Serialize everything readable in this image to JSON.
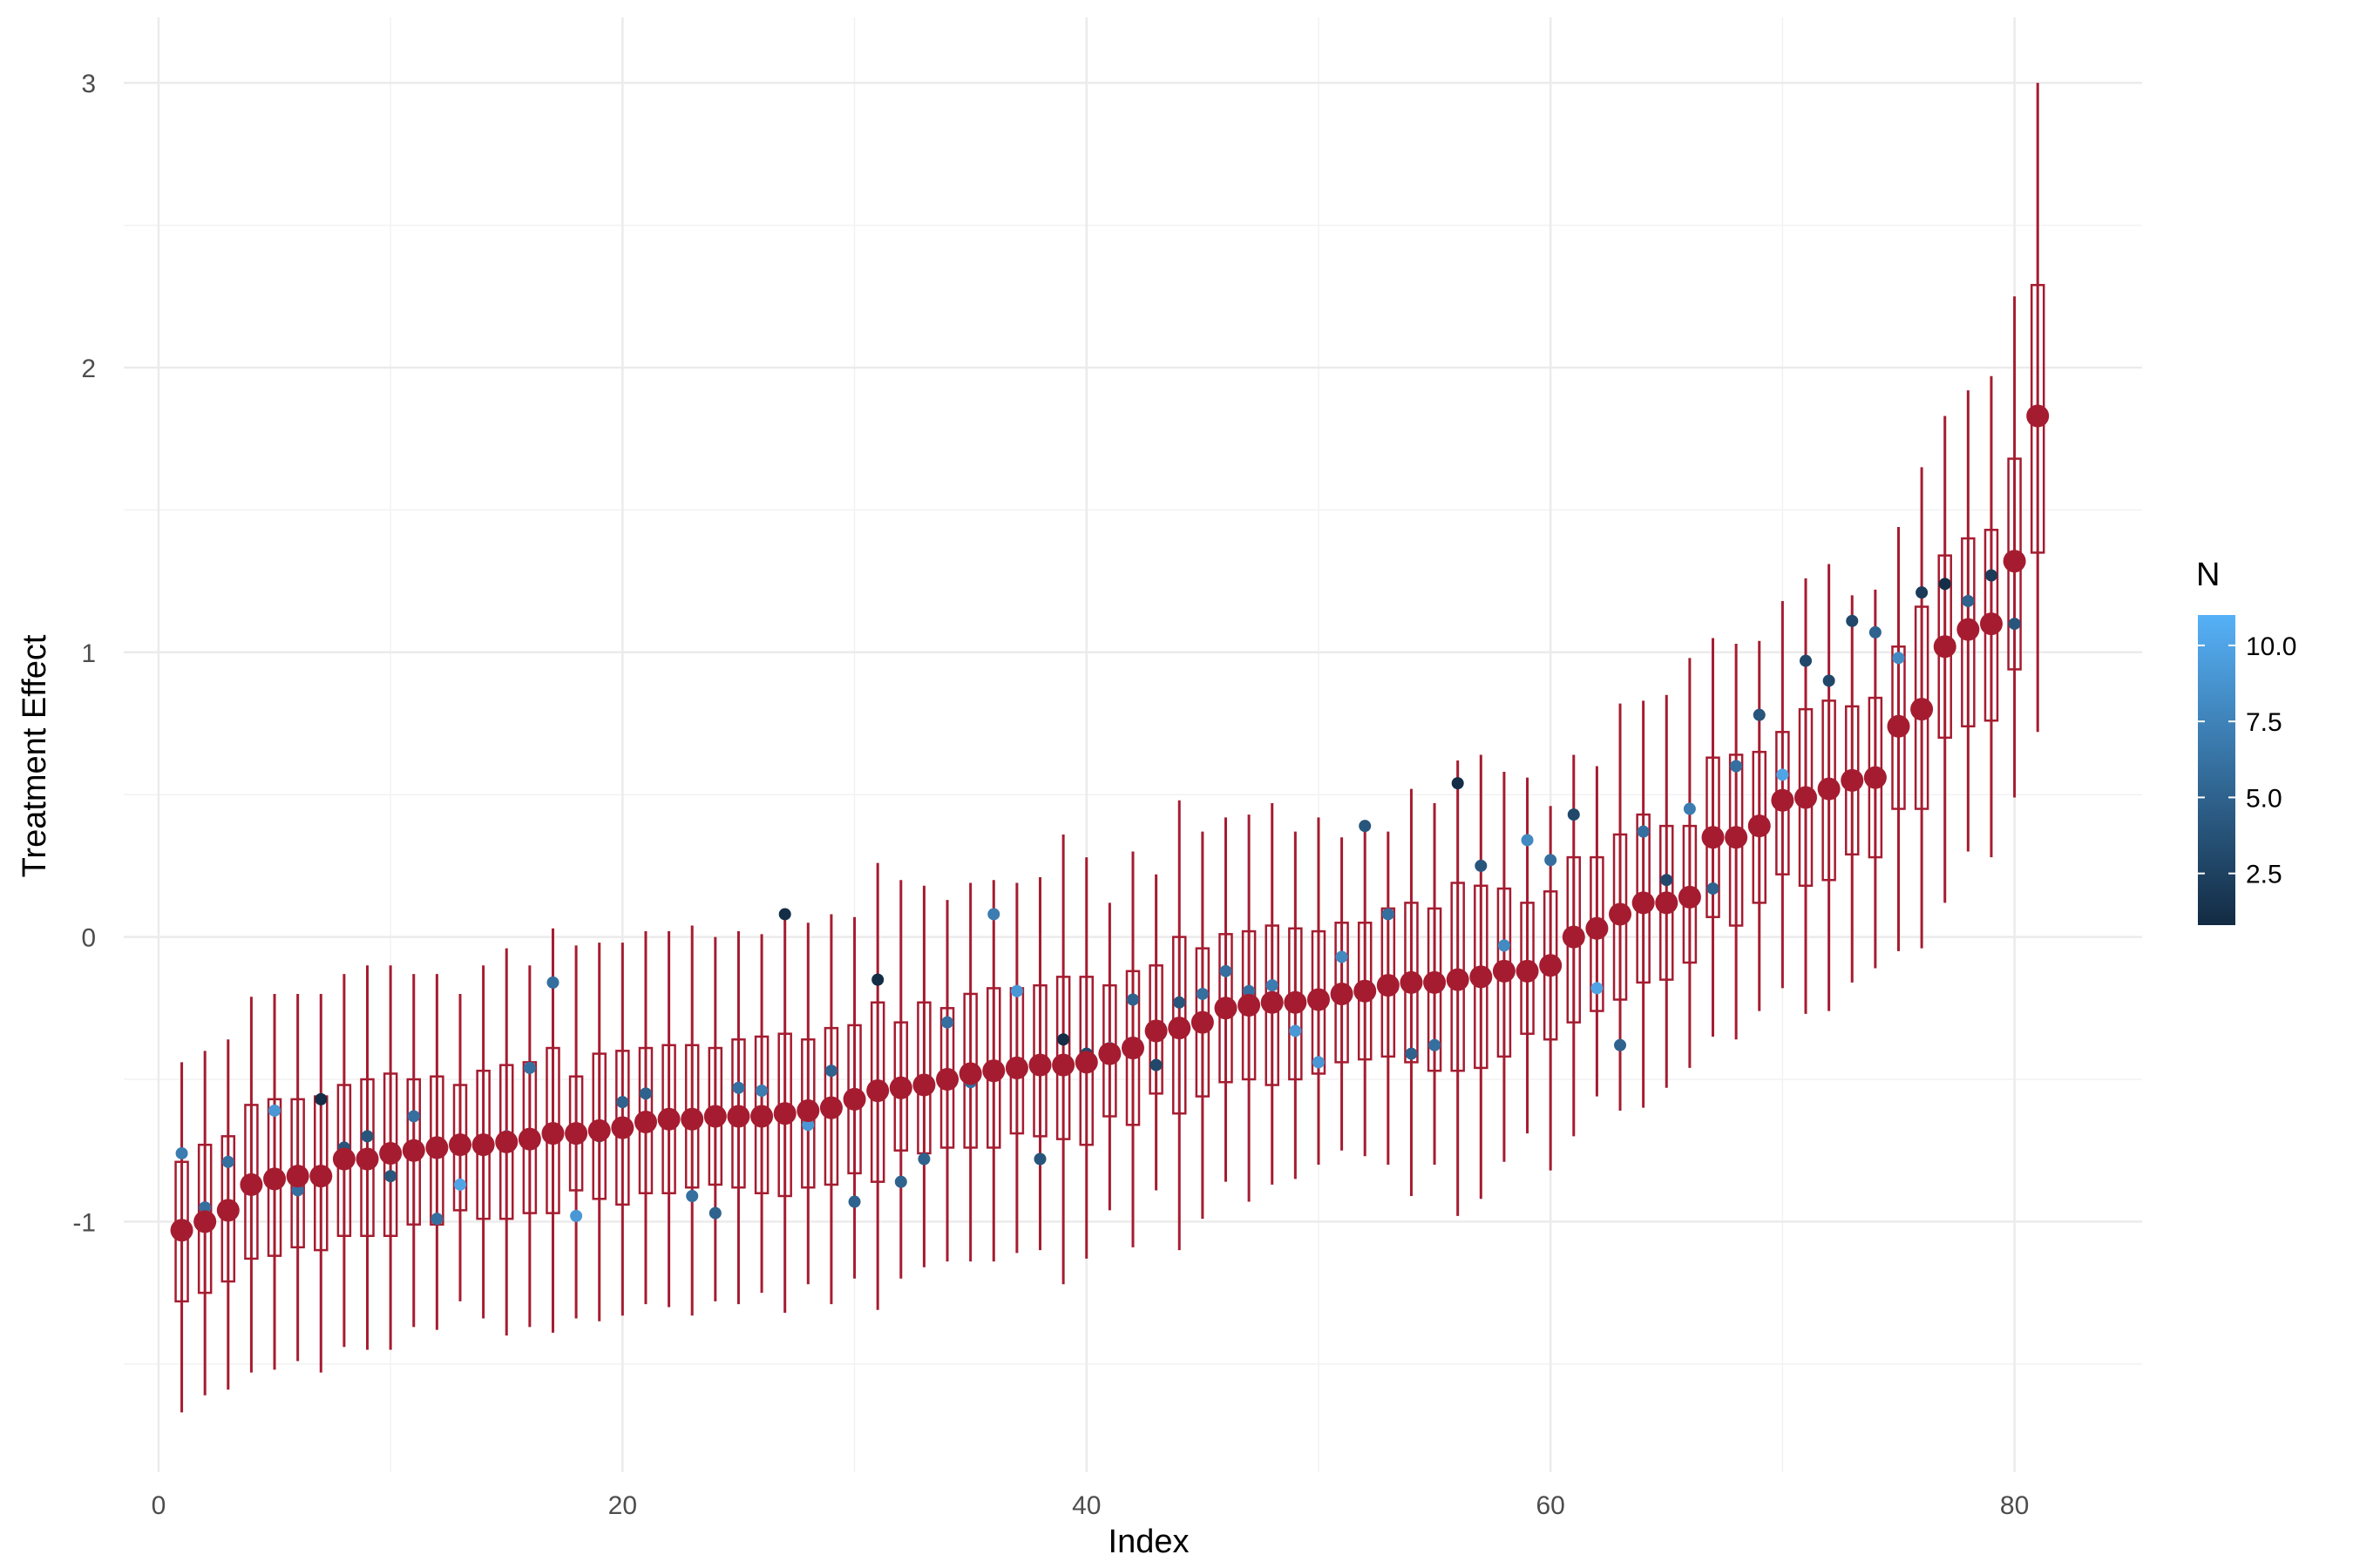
{
  "chart_data": {
    "type": "scatter",
    "xlabel": "Index",
    "ylabel": "Treatment Effect",
    "xlim": [
      -1.5,
      85.5
    ],
    "ylim": [
      -1.88,
      3.23
    ],
    "x_ticks": [
      0,
      20,
      40,
      60,
      80
    ],
    "x_tick_labels": [
      "0",
      "20",
      "40",
      "60",
      "80"
    ],
    "y_ticks": [
      -1,
      0,
      1,
      2,
      3
    ],
    "y_tick_labels": [
      "-1",
      "0",
      "1",
      "2",
      "3"
    ],
    "grid": true,
    "legend": {
      "title": "N",
      "position": "right",
      "range": [
        0.8,
        11
      ],
      "ticks": [
        2.5,
        5.0,
        7.5,
        10.0
      ],
      "tick_labels": [
        "2.5",
        "5.0",
        "7.5",
        "10.0"
      ],
      "low_color": "#132B43",
      "high_color": "#56B1F7"
    },
    "estimate_color": "#A51C30",
    "index": [
      1,
      2,
      3,
      4,
      5,
      6,
      7,
      8,
      9,
      10,
      11,
      12,
      13,
      14,
      15,
      16,
      17,
      18,
      19,
      20,
      21,
      22,
      23,
      24,
      25,
      26,
      27,
      28,
      29,
      30,
      31,
      32,
      33,
      34,
      35,
      36,
      37,
      38,
      39,
      40,
      41,
      42,
      43,
      44,
      45,
      46,
      47,
      48,
      49,
      50,
      51,
      52,
      53,
      54,
      55,
      56,
      57,
      58,
      59,
      60,
      61,
      62,
      63,
      64,
      65,
      66,
      67,
      68,
      69,
      70,
      71,
      72,
      73,
      74,
      75,
      76,
      77,
      78,
      79,
      80,
      81
    ],
    "estimate": [
      -1.03,
      -1.0,
      -0.96,
      -0.87,
      -0.85,
      -0.84,
      -0.84,
      -0.78,
      -0.78,
      -0.76,
      -0.75,
      -0.74,
      -0.73,
      -0.73,
      -0.72,
      -0.71,
      -0.69,
      -0.69,
      -0.68,
      -0.67,
      -0.65,
      -0.64,
      -0.64,
      -0.63,
      -0.63,
      -0.63,
      -0.62,
      -0.61,
      -0.6,
      -0.57,
      -0.54,
      -0.53,
      -0.52,
      -0.5,
      -0.48,
      -0.47,
      -0.46,
      -0.45,
      -0.45,
      -0.44,
      -0.41,
      -0.39,
      -0.33,
      -0.32,
      -0.3,
      -0.25,
      -0.24,
      -0.23,
      -0.23,
      -0.22,
      -0.2,
      -0.19,
      -0.17,
      -0.16,
      -0.16,
      -0.15,
      -0.14,
      -0.12,
      -0.12,
      -0.1,
      0.0,
      0.03,
      0.08,
      0.12,
      0.12,
      0.14,
      0.35,
      0.35,
      0.39,
      0.48,
      0.49,
      0.52,
      0.55,
      0.56,
      0.74,
      0.8,
      1.02,
      1.08,
      1.1,
      1.32,
      1.83
    ],
    "ci95_low": [
      -1.67,
      -1.61,
      -1.59,
      -1.53,
      -1.52,
      -1.49,
      -1.53,
      -1.44,
      -1.45,
      -1.45,
      -1.37,
      -1.38,
      -1.28,
      -1.34,
      -1.4,
      -1.37,
      -1.39,
      -1.34,
      -1.35,
      -1.33,
      -1.29,
      -1.3,
      -1.33,
      -1.28,
      -1.29,
      -1.25,
      -1.32,
      -1.22,
      -1.29,
      -1.2,
      -1.31,
      -1.2,
      -1.16,
      -1.14,
      -1.14,
      -1.14,
      -1.11,
      -1.1,
      -1.22,
      -1.13,
      -0.96,
      -1.09,
      -0.89,
      -1.1,
      -0.99,
      -0.86,
      -0.93,
      -0.87,
      -0.85,
      -0.8,
      -0.75,
      -0.77,
      -0.8,
      -0.91,
      -0.8,
      -0.98,
      -0.92,
      -0.79,
      -0.69,
      -0.82,
      -0.7,
      -0.56,
      -0.61,
      -0.6,
      -0.53,
      -0.46,
      -0.35,
      -0.36,
      -0.26,
      -0.18,
      -0.27,
      -0.26,
      -0.16,
      -0.11,
      -0.05,
      -0.04,
      0.12,
      0.3,
      0.28,
      0.49,
      0.72
    ],
    "ci95_high": [
      -0.44,
      -0.4,
      -0.36,
      -0.21,
      -0.2,
      -0.2,
      -0.2,
      -0.13,
      -0.1,
      -0.1,
      -0.13,
      -0.13,
      -0.2,
      -0.1,
      -0.04,
      -0.1,
      0.03,
      -0.03,
      -0.02,
      -0.02,
      0.02,
      0.02,
      0.04,
      0.0,
      0.02,
      0.01,
      0.06,
      0.05,
      0.08,
      0.07,
      0.26,
      0.2,
      0.18,
      0.13,
      0.19,
      0.2,
      0.19,
      0.21,
      0.36,
      0.28,
      0.12,
      0.3,
      0.22,
      0.48,
      0.37,
      0.42,
      0.43,
      0.47,
      0.37,
      0.42,
      0.35,
      0.4,
      0.37,
      0.52,
      0.47,
      0.62,
      0.64,
      0.58,
      0.56,
      0.46,
      0.64,
      0.6,
      0.82,
      0.83,
      0.85,
      0.98,
      1.05,
      1.03,
      1.04,
      1.18,
      1.26,
      1.31,
      1.2,
      1.22,
      1.44,
      1.65,
      1.83,
      1.92,
      1.97,
      2.25,
      3.0
    ],
    "ci50_low": [
      -1.28,
      -1.25,
      -1.21,
      -1.13,
      -1.12,
      -1.09,
      -1.1,
      -1.05,
      -1.05,
      -1.05,
      -1.01,
      -1.01,
      -0.96,
      -0.99,
      -0.99,
      -0.97,
      -0.97,
      -0.89,
      -0.92,
      -0.94,
      -0.9,
      -0.9,
      -0.88,
      -0.87,
      -0.88,
      -0.9,
      -0.91,
      -0.88,
      -0.87,
      -0.83,
      -0.86,
      -0.75,
      -0.76,
      -0.74,
      -0.74,
      -0.74,
      -0.69,
      -0.7,
      -0.71,
      -0.73,
      -0.63,
      -0.66,
      -0.55,
      -0.62,
      -0.56,
      -0.51,
      -0.5,
      -0.52,
      -0.5,
      -0.48,
      -0.44,
      -0.43,
      -0.42,
      -0.44,
      -0.47,
      -0.47,
      -0.46,
      -0.42,
      -0.34,
      -0.36,
      -0.3,
      -0.26,
      -0.22,
      -0.16,
      -0.15,
      -0.09,
      0.07,
      0.04,
      0.12,
      0.22,
      0.18,
      0.2,
      0.29,
      0.28,
      0.45,
      0.45,
      0.7,
      0.74,
      0.76,
      0.94,
      1.35
    ],
    "ci50_high": [
      -0.79,
      -0.73,
      -0.7,
      -0.59,
      -0.57,
      -0.57,
      -0.56,
      -0.52,
      -0.5,
      -0.48,
      -0.5,
      -0.49,
      -0.52,
      -0.47,
      -0.45,
      -0.44,
      -0.39,
      -0.49,
      -0.41,
      -0.4,
      -0.39,
      -0.38,
      -0.38,
      -0.39,
      -0.36,
      -0.35,
      -0.34,
      -0.36,
      -0.32,
      -0.31,
      -0.23,
      -0.3,
      -0.23,
      -0.25,
      -0.2,
      -0.18,
      -0.18,
      -0.17,
      -0.14,
      -0.14,
      -0.17,
      -0.12,
      -0.1,
      0.0,
      -0.04,
      0.01,
      0.02,
      0.04,
      0.03,
      0.02,
      0.05,
      0.05,
      0.1,
      0.12,
      0.1,
      0.19,
      0.18,
      0.17,
      0.12,
      0.16,
      0.28,
      0.28,
      0.36,
      0.43,
      0.39,
      0.39,
      0.63,
      0.64,
      0.65,
      0.72,
      0.8,
      0.83,
      0.81,
      0.84,
      1.02,
      1.16,
      1.34,
      1.4,
      1.43,
      1.68,
      2.29
    ],
    "observed": [
      -0.76,
      -0.95,
      -0.79,
      -0.87,
      -0.61,
      -0.89,
      -0.57,
      -0.74,
      -0.7,
      -0.84,
      -0.63,
      -0.99,
      -0.87,
      -0.72,
      -0.7,
      -0.46,
      -0.16,
      -0.98,
      -0.7,
      -0.58,
      -0.55,
      -0.63,
      -0.91,
      -0.97,
      -0.53,
      -0.54,
      0.08,
      -0.66,
      -0.47,
      -0.93,
      -0.15,
      -0.86,
      -0.78,
      -0.3,
      -0.51,
      0.08,
      -0.19,
      -0.78,
      -0.36,
      -0.41,
      -0.39,
      -0.22,
      -0.45,
      -0.23,
      -0.2,
      -0.12,
      -0.19,
      -0.17,
      -0.33,
      -0.44,
      -0.07,
      0.39,
      0.08,
      -0.41,
      -0.38,
      0.54,
      0.25,
      -0.03,
      0.34,
      0.27,
      0.43,
      -0.18,
      -0.38,
      0.37,
      0.2,
      0.45,
      0.17,
      0.6,
      0.78,
      0.57,
      0.97,
      0.9,
      1.11,
      1.07,
      0.98,
      1.21,
      1.24,
      1.18,
      1.27,
      1.1,
      1.83
    ],
    "n": [
      7,
      6,
      6,
      7,
      9,
      6,
      1,
      4,
      4,
      4,
      6,
      6,
      10,
      4,
      7,
      6,
      6,
      9,
      5,
      5,
      5,
      4,
      6,
      5,
      6,
      7,
      1,
      9,
      5,
      5,
      1,
      5,
      5,
      6,
      6,
      7,
      9,
      4,
      1,
      3,
      9,
      5,
      3,
      4,
      6,
      6,
      6,
      7,
      9,
      9,
      8,
      4,
      6,
      5,
      6,
      1,
      4,
      8,
      8,
      6,
      3,
      10,
      5,
      6,
      3,
      7,
      5,
      6,
      4,
      10,
      3,
      3,
      3,
      5,
      8,
      2,
      1,
      5,
      2,
      4,
      3
    ]
  }
}
